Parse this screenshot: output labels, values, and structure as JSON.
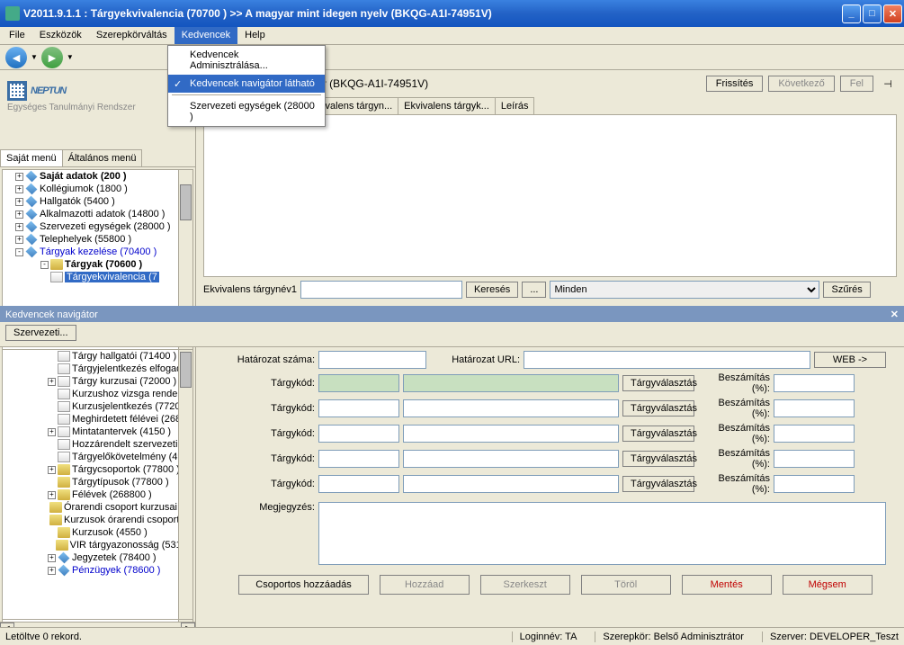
{
  "window": {
    "title": "V2011.9.1.1 : Tárgyekvivalencia (70700  )  >> A magyar mint idegen nyelv (BKQG-A1I-74951V)"
  },
  "menubar": {
    "items": [
      "File",
      "Eszközök",
      "Szerepkörváltás",
      "Kedvencek",
      "Help"
    ],
    "active_index": 3
  },
  "dropdown": {
    "items": [
      {
        "label": "Kedvencek Adminisztrálása...",
        "checked": false
      },
      {
        "label": "Kedvencek navigátor látható",
        "checked": true,
        "selected": true
      }
    ],
    "footer": "Szervezeti egységek (28000  )"
  },
  "logo": {
    "text": "NEPTUN",
    "sub": "Egységes Tanulmányi Rendszer"
  },
  "menu_tabs": {
    "items": [
      "Saját menü",
      "Általános menü"
    ],
    "active": 0
  },
  "tree_top": [
    {
      "exp": "+",
      "ico": "diamond",
      "label": "Saját adatok (200  )",
      "bold": true
    },
    {
      "exp": "+",
      "ico": "diamond",
      "label": "Kollégiumok (1800  )"
    },
    {
      "exp": "+",
      "ico": "diamond",
      "label": "Hallgatók (5400  )"
    },
    {
      "exp": "+",
      "ico": "diamond",
      "label": "Alkalmazotti adatok (14800  )"
    },
    {
      "exp": "+",
      "ico": "diamond",
      "label": "Szervezeti egységek (28000  )"
    },
    {
      "exp": "+",
      "ico": "diamond",
      "label": "Telephelyek (55800  )"
    },
    {
      "exp": "-",
      "ico": "diamond",
      "label": "Tárgyak kezelése (70400  )",
      "blue": true
    }
  ],
  "tree_top_sub": [
    {
      "exp": "-",
      "ico": "folder",
      "label": "Tárgyak  (70600   )",
      "bold": true
    },
    {
      "exp": "",
      "ico": "page",
      "label": "Tárgyekvivalencia (7",
      "sel": true
    }
  ],
  "tree_bottom": [
    {
      "exp": "",
      "ico": "page",
      "label": "Tárgy hallgatói (71400  )"
    },
    {
      "exp": "",
      "ico": "page",
      "label": "Tárgyjelentkezés elfogad"
    },
    {
      "exp": "+",
      "ico": "page",
      "label": "Tárgy kurzusai (72000  )"
    },
    {
      "exp": "",
      "ico": "page",
      "label": "Kurzushoz vizsga rendelé"
    },
    {
      "exp": "",
      "ico": "page",
      "label": "Kurzusjelentkezés (77200"
    },
    {
      "exp": "",
      "ico": "page",
      "label": "Meghirdetett félévei (2686"
    },
    {
      "exp": "+",
      "ico": "page",
      "label": "Mintatantervek (4150   )"
    },
    {
      "exp": "",
      "ico": "page",
      "label": "Hozzárendelt szervezeti e"
    },
    {
      "exp": "",
      "ico": "page",
      "label": "Tárgyelőkövetelmény (499"
    },
    {
      "exp": "+",
      "ico": "folder",
      "label": "Tárgycsoportok (77800  )"
    },
    {
      "exp": "",
      "ico": "folder",
      "label": "Tárgytípusok (77800  )"
    },
    {
      "exp": "+",
      "ico": "folder",
      "label": "Félévek (268800  )"
    },
    {
      "exp": "",
      "ico": "folder",
      "label": "Órarendi csoport kurzusai (55"
    },
    {
      "exp": "",
      "ico": "folder",
      "label": "Kurzusok órarendi csoportja (3"
    },
    {
      "exp": "",
      "ico": "folder",
      "label": "Kurzusok (4550  )"
    },
    {
      "exp": "",
      "ico": "folder",
      "label": "VIR tárgyazonosság (53150"
    },
    {
      "exp": "+",
      "ico": "diamond",
      "label": "Jegyzetek (78400  )"
    },
    {
      "exp": "+",
      "ico": "diamond",
      "label": "Pénzügyek (78600  )",
      "blue": true
    }
  ],
  "content": {
    "path": "magyar mint idegen nyelv (BKQG-A1I-74951V)",
    "buttons": {
      "refresh": "Frissítés",
      "next": "Következő",
      "up": "Fel"
    },
    "tabs": [
      "Ekvivalens tárgyk...",
      "Ekvivalens tárgyn...",
      "Ekvivalens tárgyk...",
      "Leírás"
    ]
  },
  "search": {
    "label": "Ekvivalens tárgynév1",
    "btn_search": "Keresés",
    "btn_dots": "...",
    "select": "Minden",
    "btn_filter": "Szűrés"
  },
  "kedv": {
    "title": "Kedvencek navigátor",
    "btn": "Szervezeti..."
  },
  "form": {
    "hat_szama": "Határozat száma:",
    "hat_url": "Határozat URL:",
    "web": "WEB ->",
    "targy": "Tárgykód:",
    "valaszt": "Tárgyválasztás",
    "beszam": "Beszámítás (%):",
    "megj": "Megjegyzés:"
  },
  "bottom": {
    "add_group": "Csoportos hozzáadás",
    "add": "Hozzáad",
    "edit": "Szerkeszt",
    "del": "Töröl",
    "save": "Mentés",
    "cancel": "Mégsem"
  },
  "status": {
    "left": "Letöltve 0 rekord.",
    "login": "Loginnév: TA",
    "role": "Szerepkör: Belső Adminisztrátor",
    "server": "Szerver: DEVELOPER_Teszt"
  }
}
